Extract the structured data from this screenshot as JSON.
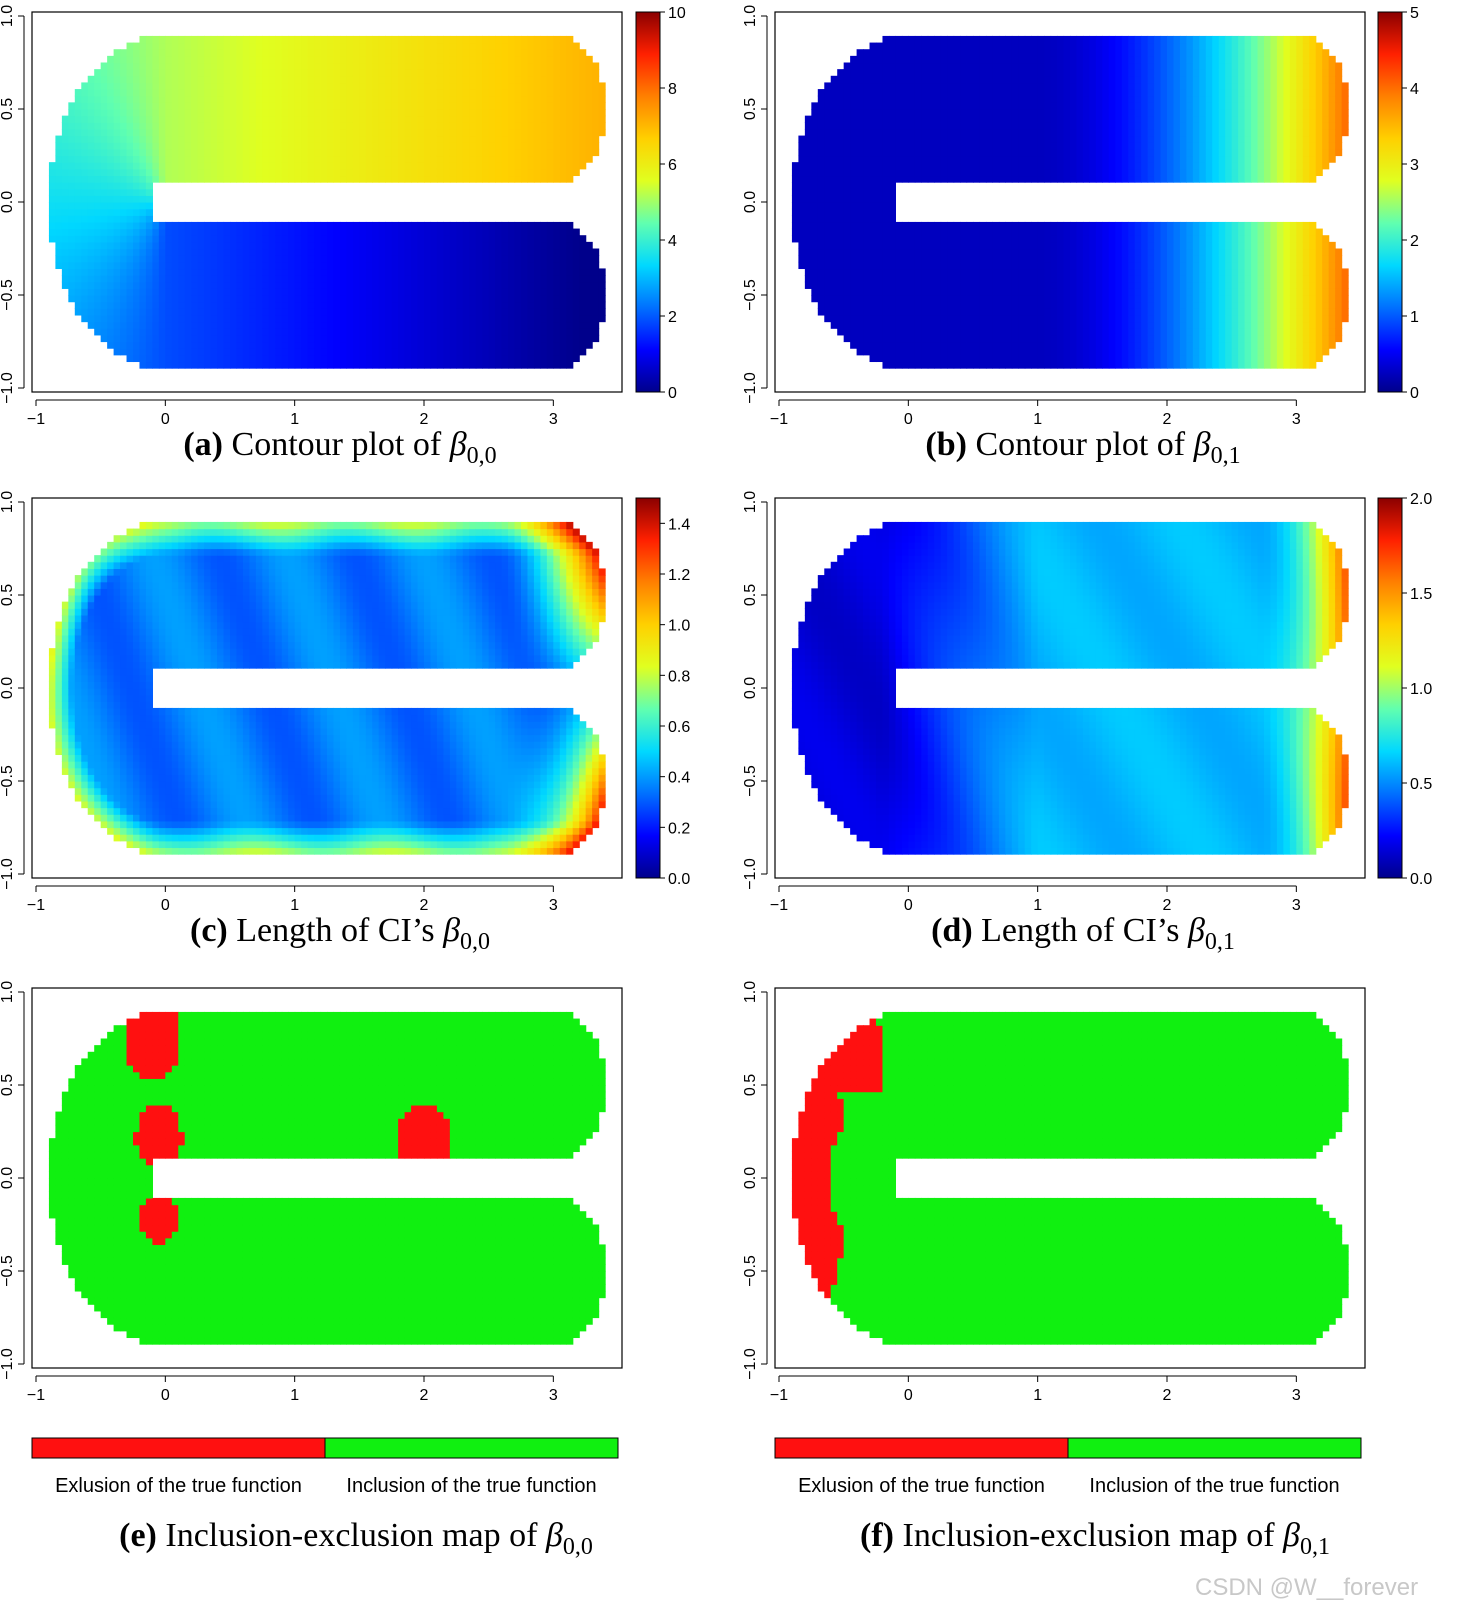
{
  "figure": {
    "watermark": "CSDN @W__forever"
  },
  "chart_data": [
    {
      "type": "heatmap",
      "panel": "a",
      "caption_letter": "(a)",
      "caption_text": "Contour plot of",
      "caption_symbol": "β",
      "caption_sub": "0,0",
      "domain_shape": "horseshoe",
      "x_ticks": [
        "−1",
        "0",
        "1",
        "2",
        "3"
      ],
      "y_ticks": [
        "−1.0",
        "−0.5",
        "0.0",
        "0.5",
        "1.0"
      ],
      "xlim": [
        -1,
        3.5
      ],
      "ylim": [
        -1,
        1
      ],
      "colorbar_ticks": [
        "0",
        "2",
        "4",
        "6",
        "8",
        "10"
      ],
      "colorbar_range": [
        0,
        10
      ],
      "field": "beta00",
      "grid": false
    },
    {
      "type": "heatmap",
      "panel": "b",
      "caption_letter": "(b)",
      "caption_text": "Contour plot of",
      "caption_symbol": "β",
      "caption_sub": "0,1",
      "domain_shape": "horseshoe",
      "x_ticks": [
        "−1",
        "0",
        "1",
        "2",
        "3"
      ],
      "y_ticks": [
        "−1.0",
        "−0.5",
        "0.0",
        "0.5",
        "1.0"
      ],
      "xlim": [
        -1,
        3.5
      ],
      "ylim": [
        -1,
        1
      ],
      "colorbar_ticks": [
        "0",
        "1",
        "2",
        "3",
        "4",
        "5"
      ],
      "colorbar_range": [
        0,
        5
      ],
      "field": "beta01",
      "grid": false
    },
    {
      "type": "heatmap",
      "panel": "c",
      "caption_letter": "(c)",
      "caption_text": "Length of CI’s",
      "caption_symbol": "β",
      "caption_sub": "0,0",
      "domain_shape": "horseshoe",
      "x_ticks": [
        "−1",
        "0",
        "1",
        "2",
        "3"
      ],
      "y_ticks": [
        "−1.0",
        "−0.5",
        "0.0",
        "0.5",
        "1.0"
      ],
      "xlim": [
        -1,
        3.5
      ],
      "ylim": [
        -1,
        1
      ],
      "colorbar_ticks": [
        "0.0",
        "0.2",
        "0.4",
        "0.6",
        "0.8",
        "1.0",
        "1.2",
        "1.4"
      ],
      "colorbar_range": [
        0,
        1.5
      ],
      "field": "ci00",
      "grid": false
    },
    {
      "type": "heatmap",
      "panel": "d",
      "caption_letter": "(d)",
      "caption_text": "Length of CI’s",
      "caption_symbol": "β",
      "caption_sub": "0,1",
      "domain_shape": "horseshoe",
      "x_ticks": [
        "−1",
        "0",
        "1",
        "2",
        "3"
      ],
      "y_ticks": [
        "−1.0",
        "−0.5",
        "0.0",
        "0.5",
        "1.0"
      ],
      "xlim": [
        -1,
        3.5
      ],
      "ylim": [
        -1,
        1
      ],
      "colorbar_ticks": [
        "0.0",
        "0.5",
        "1.0",
        "1.5",
        "2.0"
      ],
      "colorbar_range": [
        0,
        2
      ],
      "field": "ci01",
      "grid": false
    },
    {
      "type": "heatmap",
      "panel": "e",
      "caption_letter": "(e)",
      "caption_text": "Inclusion-exclusion map of",
      "caption_symbol": "β",
      "caption_sub": "0,0",
      "domain_shape": "horseshoe",
      "x_ticks": [
        "−1",
        "0",
        "1",
        "2",
        "3"
      ],
      "y_ticks": [
        "−1.0",
        "−0.5",
        "0.0",
        "0.5",
        "1.0"
      ],
      "xlim": [
        -1,
        3.5
      ],
      "ylim": [
        -1,
        1
      ],
      "categories": [
        "Exlusion of the true function",
        "Inclusion of the true function"
      ],
      "category_colors": [
        "#ff1010",
        "#10f010"
      ],
      "field": "incl00",
      "grid": false
    },
    {
      "type": "heatmap",
      "panel": "f",
      "caption_letter": "(f)",
      "caption_text": "Inclusion-exclusion map of",
      "caption_symbol": "β",
      "caption_sub": "0,1",
      "domain_shape": "horseshoe",
      "x_ticks": [
        "−1",
        "0",
        "1",
        "2",
        "3"
      ],
      "y_ticks": [
        "−1.0",
        "−0.5",
        "0.0",
        "0.5",
        "1.0"
      ],
      "xlim": [
        -1,
        3.5
      ],
      "ylim": [
        -1,
        1
      ],
      "categories": [
        "Exlusion of the true function",
        "Inclusion of the true function"
      ],
      "category_colors": [
        "#ff1010",
        "#10f010"
      ],
      "field": "incl01",
      "grid": false
    }
  ],
  "colormap": [
    "#00008b",
    "#0000ff",
    "#0070ff",
    "#00d8ff",
    "#60ffb0",
    "#e0ff20",
    "#ffd000",
    "#ff8000",
    "#ff2000",
    "#8b0000"
  ]
}
